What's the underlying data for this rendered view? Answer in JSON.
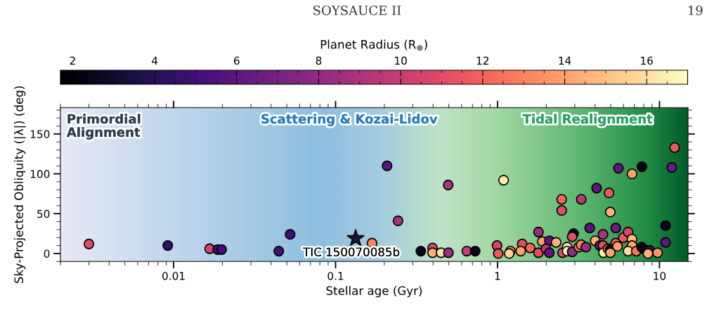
{
  "chart_data": {
    "type": "scatter",
    "xlabel": "Stellar age (Gyr)",
    "ylabel": "Sky-Projected Obliquity (|λ|) (deg)",
    "clabel": "Planet Radius (R$_{⊕}$)",
    "log": "x",
    "xlim": [
      0.002,
      15
    ],
    "xticks": [
      0.01,
      0.1,
      1,
      10
    ],
    "ylim": [
      -10,
      183
    ],
    "yticks": [
      0,
      50,
      100,
      150
    ],
    "clim": [
      1.7,
      17
    ],
    "cticks": [
      2,
      4,
      6,
      8,
      10,
      12,
      14,
      16
    ],
    "grid": false,
    "annotations": [
      "SOYSAUCE II",
      "19",
      "Primordial\nAlignment",
      "Scattering & Kozai-Lidov",
      "Tidal Realignment",
      {
        "text": "TIC 150070085b",
        "x": 0.133,
        "y": 19
      }
    ],
    "series": [
      {
        "marker": "circle",
        "x": [
          0.003,
          0.0092,
          0.0167,
          0.0187,
          0.0198,
          0.0446,
          0.0524,
          0.208,
          0.168,
          0.243,
          0.496,
          1.09,
          0.336,
          0.397,
          0.397,
          0.448,
          0.498,
          0.646,
          0.728,
          0.993,
          1.01,
          1.2,
          1.18,
          1.42,
          1.39,
          1.59,
          1.79,
          1.79,
          1.89,
          2.09,
          1.99,
          2.09,
          2.3,
          2.49,
          2.49,
          2.52,
          2.69,
          2.69,
          2.89,
          2.95,
          2.89,
          3.17,
          3.28,
          3.51,
          3.29,
          3.71,
          4.09,
          4.01,
          4.28,
          4.48,
          4.48,
          4.51,
          4.81,
          4.97,
          4.97,
          4.88,
          4.97,
          5.37,
          5.37,
          5.5,
          5.58,
          5.98,
          6.4,
          6.77,
          6.77,
          6.77,
          6.4,
          7.19,
          7.76,
          7.95,
          7.78,
          8.69,
          8.49,
          9.73,
          10.9,
          10.9,
          11.9,
          12.4
        ],
        "values": [
          12,
          10,
          6,
          5,
          5,
          3,
          24,
          110,
          13,
          41,
          86,
          92,
          3,
          7,
          1,
          1,
          1,
          3,
          3,
          10,
          0,
          3,
          0,
          12,
          3,
          7,
          27,
          1,
          15,
          16,
          6,
          1,
          14,
          68,
          54,
          1,
          8,
          3,
          2,
          25,
          21,
          8,
          11,
          8,
          68,
          32,
          82,
          16,
          10,
          24,
          10,
          1,
          6,
          5,
          1,
          76,
          52,
          32,
          13,
          9,
          107,
          20,
          27,
          100,
          18,
          10,
          3,
          3,
          8,
          6,
          109,
          4,
          0,
          1,
          35,
          14,
          108,
          133
        ],
        "colors": [
          "#e04b67",
          "#331067",
          "#d6456c",
          "#420f74",
          "#420f74",
          "#420f74",
          "#420f74",
          "#5c167f",
          "#fb8260",
          "#aa337d",
          "#aa337d",
          "#fcecae",
          "#06051a",
          "#d6456c",
          "#feb07a",
          "#fddea0",
          "#9c2e7f",
          "#c83e73",
          "#06051a",
          "#d6456c",
          "#e85862",
          "#fd9266",
          "#fed093",
          "#e04b67",
          "#fea16e",
          "#f1655d",
          "#9c2e7f",
          "#e04b67",
          "#fea16e",
          "#5c167f",
          "#b9377a",
          "#5c167f",
          "#feb07a",
          "#f1655d",
          "#e04b67",
          "#e04b67",
          "#fcecae",
          "#fcecae",
          "#8f2a81",
          "#06051a",
          "#e04b67",
          "#f8735c",
          "#fb8260",
          "#9c2e7f",
          "#b9377a",
          "#5c167f",
          "#5c167f",
          "#feb07a",
          "#5c167f",
          "#aa337d",
          "#e04b67",
          "#fcecae",
          "#f8735c",
          "#0b0924",
          "#fea16e",
          "#e85862",
          "#feb07a",
          "#681c81",
          "#f1655d",
          "#fea16e",
          "#5c167f",
          "#e85862",
          "#d6456c",
          "#fea16e",
          "#febf85",
          "#fea16e",
          "#fddea0",
          "#f8735c",
          "#06051a",
          "#06051a",
          "#06051a",
          "#331067",
          "#feb07a",
          "#fd9266",
          "#06051a",
          "#5c167f",
          "#681c81",
          "#e85862"
        ]
      },
      {
        "marker": "star",
        "color": "#1c1236",
        "x": [
          0.133
        ],
        "values": [
          19
        ]
      }
    ]
  }
}
